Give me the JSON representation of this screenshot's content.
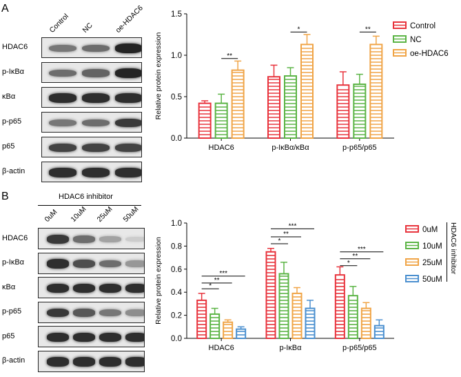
{
  "panels": {
    "a": {
      "letter": "A",
      "lanes": [
        "Control",
        "NC",
        "oe-HDAC6"
      ],
      "blots": [
        {
          "label": "HDAC6",
          "bands": [
            0.55,
            0.6,
            0.95
          ]
        },
        {
          "label": "p-IκBα",
          "bands": [
            0.6,
            0.65,
            0.95
          ]
        },
        {
          "label": "κBα",
          "bands": [
            0.9,
            0.9,
            0.9
          ]
        },
        {
          "label": "p-p65",
          "bands": [
            0.55,
            0.6,
            0.85
          ]
        },
        {
          "label": "p65",
          "bands": [
            0.8,
            0.8,
            0.8
          ]
        },
        {
          "label": "β-actin",
          "bands": [
            0.9,
            0.9,
            0.9
          ]
        }
      ]
    },
    "b": {
      "letter": "B",
      "inhibitor_label": "HDAC6  inhibitor",
      "lanes": [
        "0uM",
        "10uM",
        "25uM",
        "50uM"
      ],
      "blots": [
        {
          "label": "HDAC6",
          "bands": [
            0.85,
            0.6,
            0.35,
            0.15
          ]
        },
        {
          "label": "p-IκBα",
          "bands": [
            0.9,
            0.75,
            0.6,
            0.4
          ]
        },
        {
          "label": "κBα",
          "bands": [
            0.9,
            0.9,
            0.9,
            0.9
          ]
        },
        {
          "label": "p-p65",
          "bands": [
            0.85,
            0.7,
            0.55,
            0.45
          ]
        },
        {
          "label": "p65",
          "bands": [
            0.9,
            0.9,
            0.9,
            0.9
          ]
        },
        {
          "label": "β-actin",
          "bands": [
            0.9,
            0.9,
            0.9,
            0.9
          ]
        }
      ]
    }
  },
  "chart_data": [
    {
      "type": "bar",
      "categories": [
        "HDAC6",
        "p-IκBα/κBα",
        "p-p65/p65"
      ],
      "series": [
        {
          "name": "Control",
          "color": "#e8333c",
          "values": [
            0.42,
            0.74,
            0.64
          ],
          "errors": [
            0.03,
            0.14,
            0.16
          ]
        },
        {
          "name": "NC",
          "color": "#5bb445",
          "values": [
            0.42,
            0.75,
            0.65
          ],
          "errors": [
            0.11,
            0.1,
            0.12
          ]
        },
        {
          "name": "oe-HDAC6",
          "color": "#f0a446",
          "values": [
            0.82,
            1.13,
            1.13
          ],
          "errors": [
            0.11,
            0.12,
            0.1
          ]
        }
      ],
      "ylabel": "Relative protein expression",
      "ylim": [
        0,
        1.5
      ],
      "yticks": [
        "0.0",
        "0.5",
        "1.0",
        "1.5"
      ],
      "significance": [
        {
          "category": 0,
          "from": 1,
          "to": 2,
          "label": "**",
          "y": 0.96
        },
        {
          "category": 1,
          "from": 1,
          "to": 2,
          "label": "*",
          "y": 1.28
        },
        {
          "category": 2,
          "from": 1,
          "to": 2,
          "label": "**",
          "y": 1.28
        }
      ],
      "legend_position": "top-right"
    },
    {
      "type": "bar",
      "categories": [
        "HDAC6",
        "p-IκBα",
        "p-p65/p65"
      ],
      "series": [
        {
          "name": "0uM",
          "color": "#e8333c",
          "values": [
            0.33,
            0.75,
            0.55
          ],
          "errors": [
            0.06,
            0.03,
            0.07
          ]
        },
        {
          "name": "10uM",
          "color": "#5bb445",
          "values": [
            0.21,
            0.56,
            0.37
          ],
          "errors": [
            0.05,
            0.1,
            0.08
          ]
        },
        {
          "name": "25uM",
          "color": "#f0a446",
          "values": [
            0.14,
            0.39,
            0.26
          ],
          "errors": [
            0.02,
            0.05,
            0.05
          ]
        },
        {
          "name": "50uM",
          "color": "#4a8fcf",
          "values": [
            0.08,
            0.26,
            0.11
          ],
          "errors": [
            0.02,
            0.07,
            0.05
          ]
        }
      ],
      "ylabel": "Relative protein expression",
      "ylim": [
        0,
        1.0
      ],
      "yticks": [
        "0.0",
        "0.2",
        "0.4",
        "0.6",
        "0.8",
        "1.0"
      ],
      "legend_side_label": "HDAC6 inhibitor",
      "significance": [
        {
          "category": 0,
          "from": 0,
          "to": 1,
          "label": "*",
          "y": 0.43
        },
        {
          "category": 0,
          "from": 0,
          "to": 2,
          "label": "**",
          "y": 0.48
        },
        {
          "category": 0,
          "from": 0,
          "to": 3,
          "label": "***",
          "y": 0.54
        },
        {
          "category": 1,
          "from": 0,
          "to": 1,
          "label": "*",
          "y": 0.82
        },
        {
          "category": 1,
          "from": 0,
          "to": 2,
          "label": "**",
          "y": 0.88
        },
        {
          "category": 1,
          "from": 0,
          "to": 3,
          "label": "***",
          "y": 0.95
        },
        {
          "category": 2,
          "from": 0,
          "to": 1,
          "label": "*",
          "y": 0.63
        },
        {
          "category": 2,
          "from": 0,
          "to": 2,
          "label": "**",
          "y": 0.69
        },
        {
          "category": 2,
          "from": 0,
          "to": 3,
          "label": "***",
          "y": 0.75
        }
      ],
      "legend_position": "right"
    }
  ]
}
